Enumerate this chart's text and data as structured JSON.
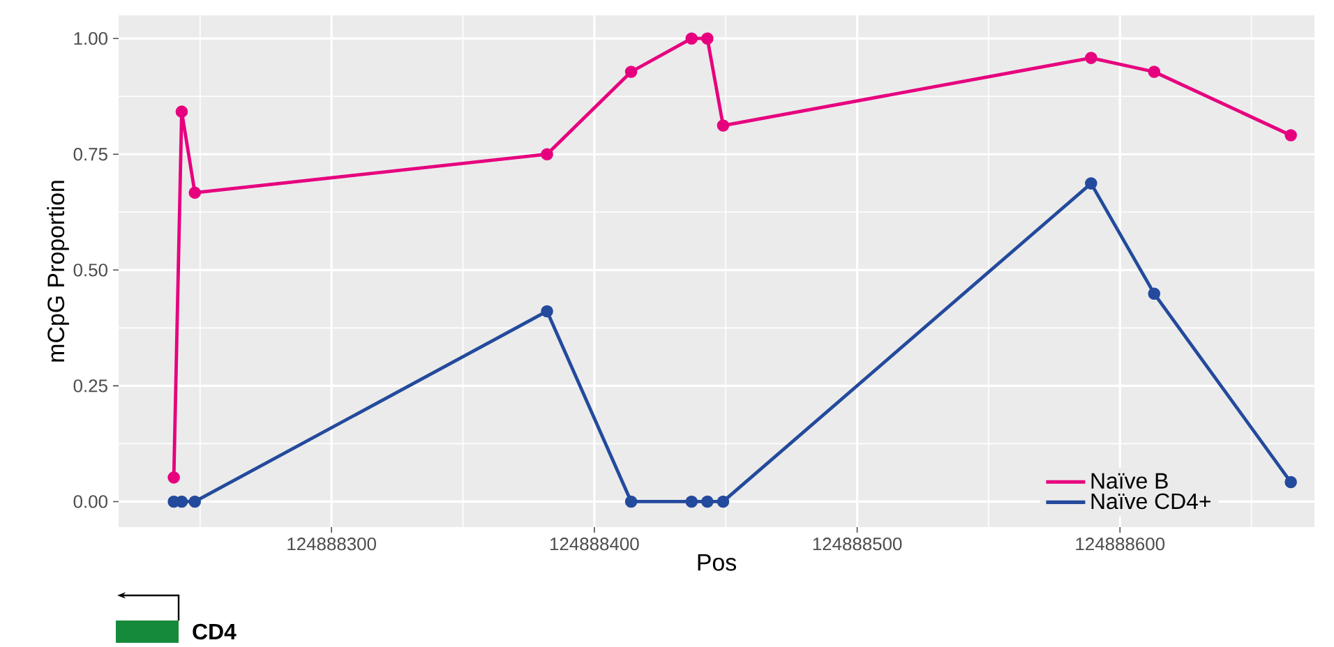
{
  "chart_data": {
    "type": "line",
    "xlabel": "Pos",
    "ylabel": "mCpG Proportion",
    "x": [
      124888240,
      124888243,
      124888248,
      124888382,
      124888414,
      124888437,
      124888443,
      124888449,
      124888589,
      124888613,
      124888665
    ],
    "series": [
      {
        "name": "Naïve B",
        "color": "#e6007e",
        "values": [
          0.052,
          0.842,
          0.667,
          0.75,
          0.928,
          1.0,
          1.0,
          0.812,
          0.958,
          0.928,
          0.791
        ]
      },
      {
        "name": "Naïve CD4+",
        "color": "#234a9c",
        "values": [
          0,
          0,
          0,
          0.411,
          0,
          0,
          0,
          0,
          0.687,
          0.449,
          0.042
        ]
      }
    ],
    "xlim": [
      124888219,
      124888674
    ],
    "xticks": [
      124888300,
      124888400,
      124888500,
      124888600
    ],
    "ylim": [
      -0.055,
      1.05
    ],
    "yticks": [
      {
        "value": 0,
        "label": "0.00"
      },
      {
        "value": 0.25,
        "label": "0.25"
      },
      {
        "value": 0.5,
        "label": "0.50"
      },
      {
        "value": 0.75,
        "label": "0.75"
      },
      {
        "value": 1,
        "label": "1.00"
      }
    ],
    "grid": true,
    "legend": "bottom right",
    "marker": "circle",
    "line_style": "solid",
    "annotations": [
      "CD4"
    ]
  }
}
